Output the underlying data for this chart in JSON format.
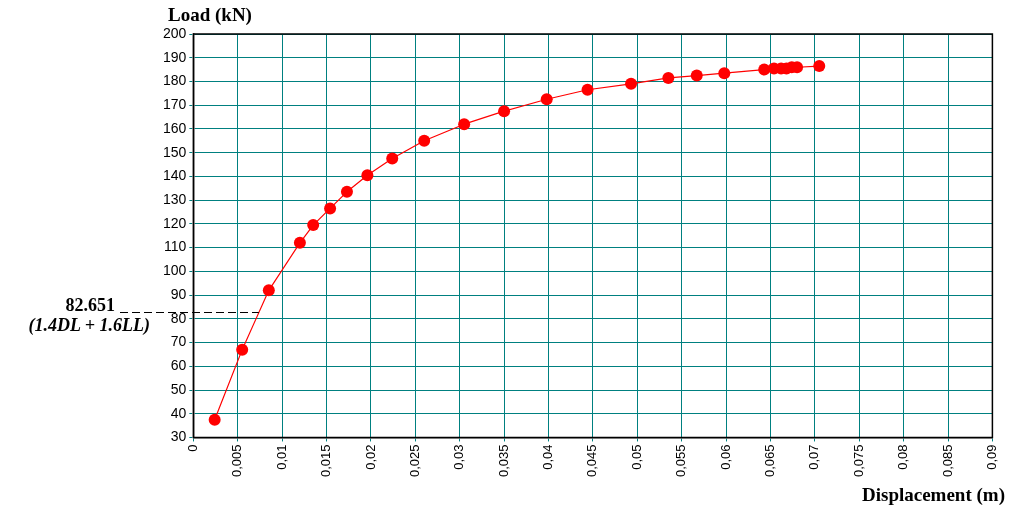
{
  "chart_data": {
    "type": "line",
    "xlabel": "Displacement (m)",
    "ylabel": "Load (kN)",
    "x": [
      0.0024,
      0.0055,
      0.0085,
      0.012,
      0.0135,
      0.0154,
      0.0173,
      0.0196,
      0.0224,
      0.026,
      0.0305,
      0.035,
      0.0398,
      0.0444,
      0.0493,
      0.0535,
      0.0567,
      0.0598,
      0.0643,
      0.0654,
      0.0662,
      0.0668,
      0.0674,
      0.068,
      0.0705
    ],
    "series": [
      {
        "color": "#ff0000",
        "values": [
          37.5,
          67,
          92,
          112,
          119.5,
          126.5,
          133.5,
          140.5,
          147.5,
          155,
          162,
          167.5,
          172.5,
          176.5,
          179,
          181.5,
          182.5,
          183.5,
          185,
          185.5,
          185.5,
          185.5,
          186,
          186,
          186.5
        ]
      }
    ],
    "xlim": [
      0,
      0.09
    ],
    "xticks": [
      0,
      {
        "value": 0.005,
        "label": "0,005"
      },
      {
        "value": 0.01,
        "label": "0,01"
      },
      {
        "value": 0.015,
        "label": "0,015"
      },
      {
        "value": 0.02,
        "label": "0,02"
      },
      {
        "value": 0.025,
        "label": "0,025"
      },
      {
        "value": 0.03,
        "label": "0,03"
      },
      {
        "value": 0.035,
        "label": "0,035"
      },
      {
        "value": 0.04,
        "label": "0,04"
      },
      {
        "value": 0.045,
        "label": "0,045"
      },
      {
        "value": 0.05,
        "label": "0,05"
      },
      {
        "value": 0.055,
        "label": "0,055"
      },
      {
        "value": 0.06,
        "label": "0,06"
      },
      {
        "value": 0.065,
        "label": "0,065"
      },
      {
        "value": 0.07,
        "label": "0,07"
      },
      {
        "value": 0.075,
        "label": "0,075"
      },
      {
        "value": 0.08,
        "label": "0,08"
      },
      {
        "value": 0.085,
        "label": "0,085"
      },
      {
        "value": 0.09,
        "label": "0,09"
      }
    ],
    "ylim": [
      30,
      200
    ],
    "yticks": [
      30,
      40,
      50,
      60,
      70,
      80,
      90,
      100,
      110,
      120,
      130,
      140,
      150,
      160,
      170,
      180,
      190,
      200
    ],
    "ref_lines": [
      {
        "axis": "y",
        "value": 82.651,
        "label": "82.651\n(1.4DL + 1.6LL)",
        "color": "#000000",
        "line_style": "dashed"
      }
    ],
    "grid": true,
    "legend": false,
    "marker": "circle",
    "line_style": "solid"
  }
}
